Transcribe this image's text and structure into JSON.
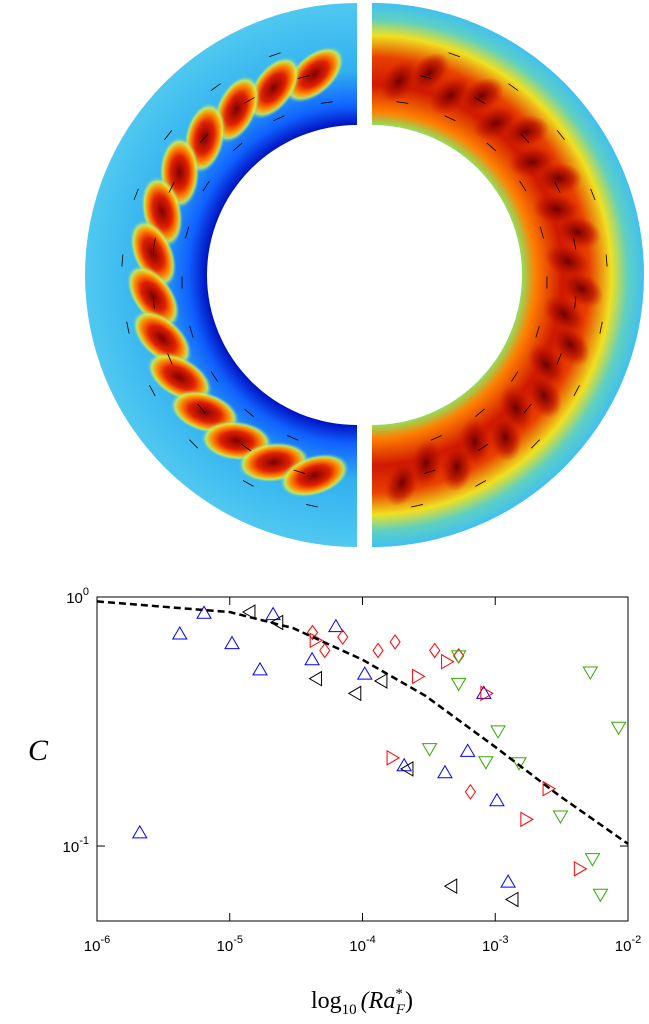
{
  "chart_data": {
    "type": "scatter",
    "y_label": "C",
    "x_label": {
      "fn": "log",
      "fn_sub": "10",
      "open": "(Ra",
      "sup": "*",
      "sub": "F",
      "close": ")"
    },
    "log_x": true,
    "log_y": true,
    "xlim": [
      1e-06,
      0.01
    ],
    "ylim": [
      0.05,
      1
    ],
    "xticks": [
      {
        "value": 1e-06,
        "label": "10",
        "power": "-6"
      },
      {
        "value": 1e-05,
        "label": "10",
        "power": "-5"
      },
      {
        "value": 0.0001,
        "label": "10",
        "power": "-4"
      },
      {
        "value": 0.001,
        "label": "10",
        "power": "-3"
      },
      {
        "value": 0.01,
        "label": "10",
        "power": "-2"
      }
    ],
    "yticks": [
      {
        "value": 0.1,
        "label": "10",
        "power": "-1"
      },
      {
        "value": 1,
        "label": "10",
        "power": "0"
      }
    ],
    "series": [
      {
        "marker": "triangle-up",
        "color": "#0000ff",
        "x": [
          2.1e-06,
          4.2e-06,
          6.4e-06,
          1.04e-05,
          1.69e-05,
          2.12e-05,
          4.17e-05,
          6.3e-05,
          0.000104,
          0.000206,
          0.000418,
          0.00062,
          0.00103,
          0.00125,
          0.00082
        ],
        "values": [
          0.113,
          0.71,
          0.86,
          0.65,
          0.51,
          0.85,
          0.56,
          0.76,
          0.49,
          0.21,
          0.197,
          0.24,
          0.152,
          0.0716,
          0.41
        ]
      },
      {
        "marker": "triangle-right",
        "color": "#ff0000",
        "x": [
          4.4e-05,
          0.000167,
          0.00026,
          0.00043,
          0.00085,
          0.0017,
          0.0025,
          0.0043
        ],
        "values": [
          0.67,
          0.226,
          0.48,
          0.55,
          0.41,
          0.128,
          0.17,
          0.081
        ]
      },
      {
        "marker": "diamond",
        "color": "#ff0000",
        "x": [
          4.2e-05,
          5.2e-05,
          7.1e-05,
          0.000131,
          0.000176,
          0.00035,
          0.00053,
          0.00065
        ],
        "values": [
          0.72,
          0.61,
          0.69,
          0.61,
          0.66,
          0.61,
          0.58,
          0.165
        ]
      },
      {
        "marker": "triangle-down",
        "color": "#33aa00",
        "x": [
          0.00053,
          0.00053,
          0.00032,
          0.00085,
          0.00105,
          0.00151,
          0.0031,
          0.0052,
          0.0054,
          0.0062,
          0.0085
        ],
        "values": [
          0.58,
          0.45,
          0.246,
          0.218,
          0.29,
          0.216,
          0.132,
          0.5,
          0.089,
          0.064,
          0.3
        ]
      },
      {
        "marker": "triangle-left",
        "color": "#000000",
        "x": [
          1.42e-05,
          2.3e-05,
          4.5e-05,
          8.9e-05,
          0.00014,
          0.00022,
          0.00047,
          0.00136
        ],
        "values": [
          0.87,
          0.79,
          0.47,
          0.41,
          0.46,
          0.204,
          0.069,
          0.061
        ]
      },
      {
        "line": "dashed",
        "color": "#000000",
        "x": [
          1e-06,
          1e-05,
          3e-05,
          0.0001,
          0.0003,
          0.001,
          0.003,
          0.01
        ],
        "values": [
          0.96,
          0.87,
          0.75,
          0.56,
          0.4,
          0.25,
          0.16,
          0.102
        ]
      }
    ]
  }
}
